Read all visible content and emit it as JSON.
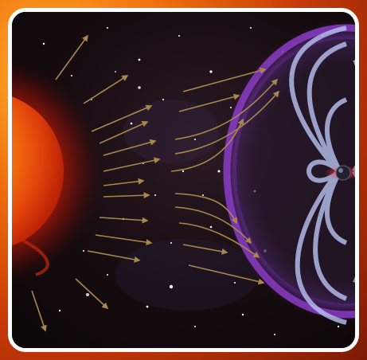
{
  "scene": {
    "description_id": "solar-wind-magnetosphere",
    "colors": {
      "frame": "#ffffff",
      "frame_bg": "#f06d0c",
      "space": "#140b0c",
      "sun_core": "#ffb01e",
      "sun_edge": "#c81c06",
      "arrows": "#a8884a",
      "magnetosphere_outer": "#8a3cc4",
      "field_lines": "#b9c3f2",
      "earth": "#202030"
    }
  }
}
